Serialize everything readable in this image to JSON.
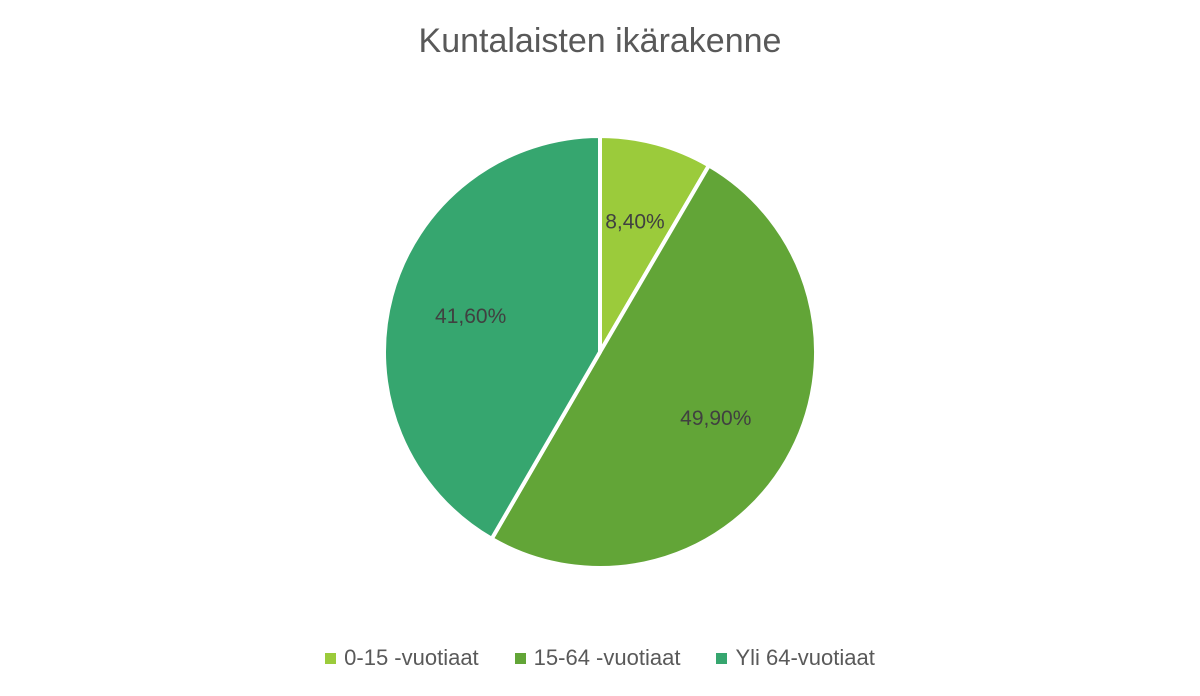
{
  "chart_data": {
    "type": "pie",
    "title": "Kuntalaisten ikärakenne",
    "categories": [
      "0-15 -vuotiaat",
      "15-64 -vuotiaat",
      "Yli 64-vuotiaat"
    ],
    "values": [
      8.4,
      49.9,
      41.6
    ],
    "data_labels": [
      "8,40%",
      "49,90%",
      "41,60%"
    ],
    "colors": [
      "#9BCB3B",
      "#62A537",
      "#36A66F"
    ],
    "legend_position": "bottom"
  }
}
